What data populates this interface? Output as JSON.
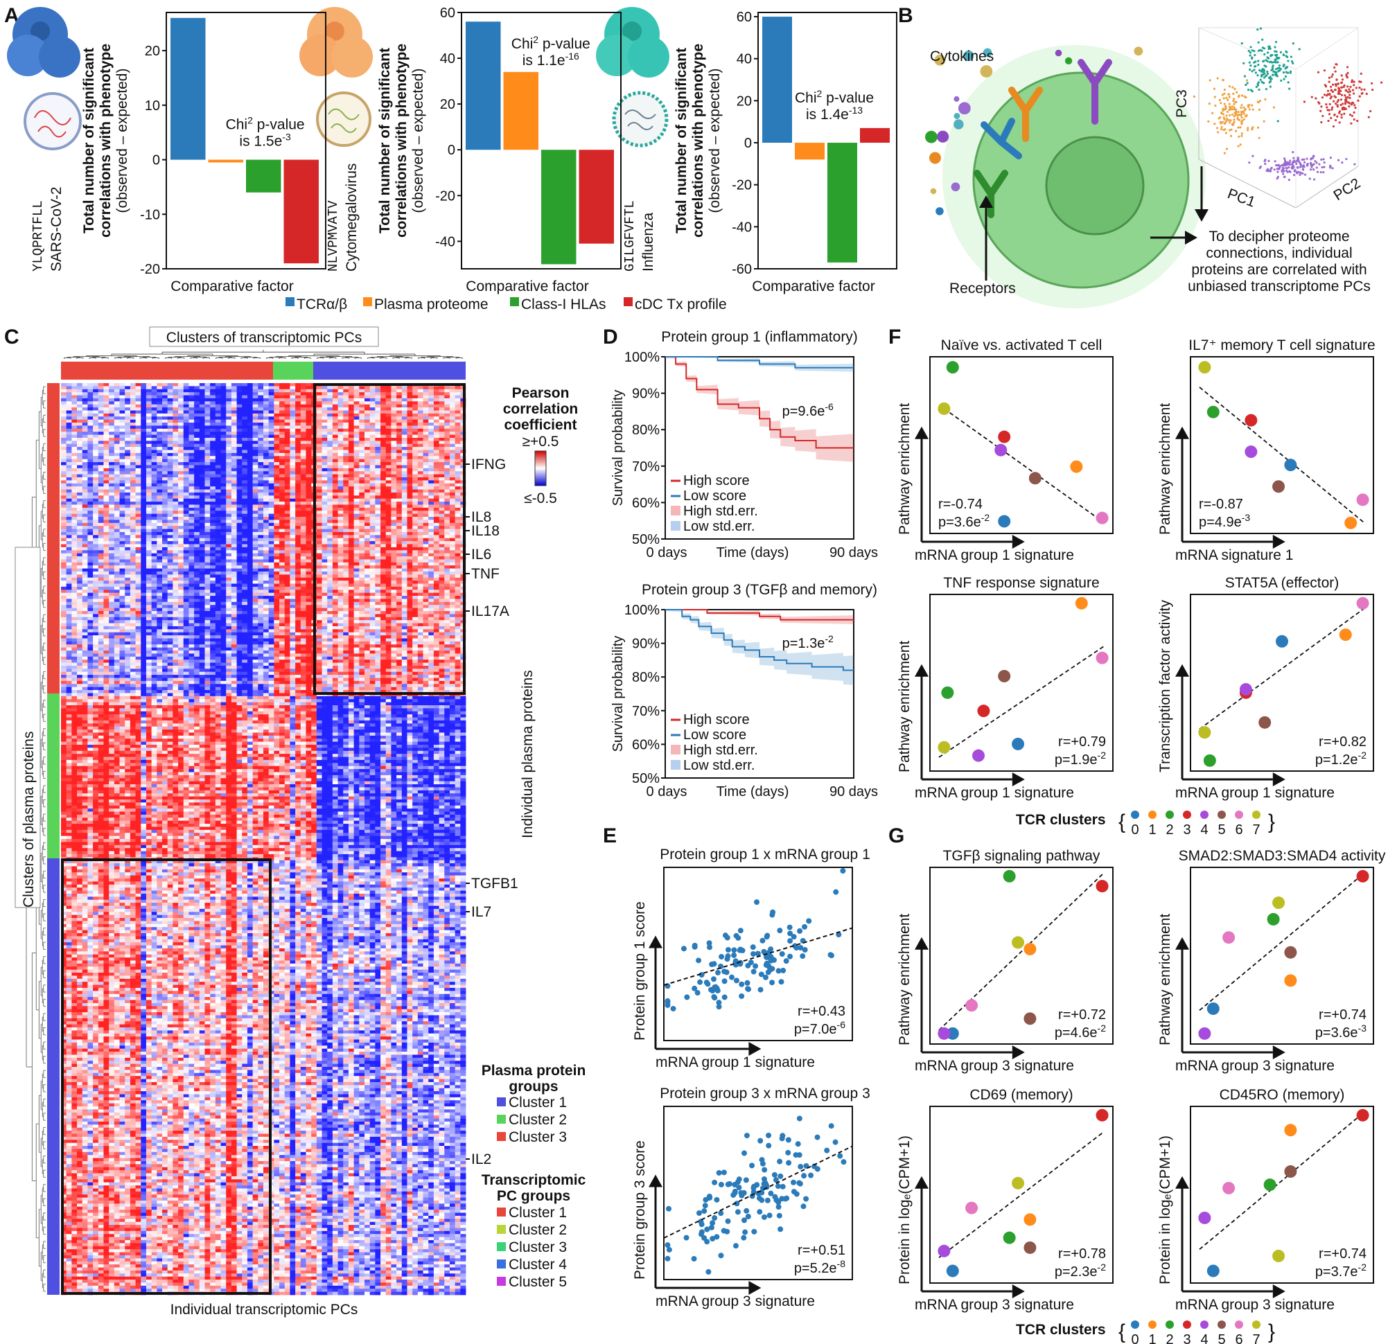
{
  "panel_labels": {
    "A": "A",
    "B": "B",
    "C": "C",
    "D": "D",
    "E": "E",
    "F": "F",
    "G": "G"
  },
  "colors": {
    "blue": "#2b7bba",
    "orange": "#ff8c1a",
    "green": "#2ca02c",
    "red": "#d62728",
    "hm_red": "#e8463a",
    "hm_green": "#5ad35a",
    "hm_blue": "#5050e0"
  },
  "panelA": {
    "ylabel_line1": "Total number of significant",
    "ylabel_line2": "correlations with phenotype",
    "ylabel_line3": "(observed – expected)",
    "xlabel": "Comparative factor",
    "pvalue_prefix": "Chi",
    "pvalue_sup": "2",
    "pvalue_word": "p-value",
    "legend": [
      "TCRα/β",
      "Plasma proteome",
      "Class-I HLAs",
      "cDC Tx profile"
    ]
  },
  "panelB": {
    "cytokines": "Cytokines",
    "receptors": "Receptors",
    "pc_axes": [
      "PC1",
      "PC2",
      "PC3"
    ],
    "note": [
      "To decipher proteome",
      "connections, individual",
      "proteins are correlated with",
      "unbiased transcriptome PCs"
    ]
  },
  "panelC": {
    "top_title": "Clusters of transcriptomic PCs",
    "left_title": "Clusters of plasma proteins",
    "bottom_title": "Individual transcriptomic PCs",
    "right_title": "Individual plasma proteins",
    "scale_title": [
      "Pearson",
      "correlation",
      "coefficient"
    ],
    "scale_max": "≥+0.5",
    "scale_min": "≤-0.5",
    "genes": [
      "IFNG",
      "IL8",
      "IL18",
      "IL6",
      "TNF",
      "IL17A",
      "TGFB1",
      "IL7",
      "IL2"
    ],
    "legend_protein_title": [
      "Plasma protein",
      "groups"
    ],
    "legend_protein": [
      "Cluster 1",
      "Cluster 2",
      "Cluster 3"
    ],
    "legend_protein_colors": [
      "#5050e0",
      "#5ad35a",
      "#e8463a"
    ],
    "legend_pc_title": [
      "Transcriptomic",
      "PC groups"
    ],
    "legend_pc": [
      "Cluster 1",
      "Cluster 2",
      "Cluster 3",
      "Cluster 4",
      "Cluster 5"
    ],
    "legend_pc_colors": [
      "#e8463a",
      "#b9d53a",
      "#3ad37a",
      "#3a6fe0",
      "#c83ae0"
    ]
  },
  "panelD": {
    "ylabel": "Survival probability",
    "xlabel": "Time (days)",
    "x_ticks": [
      "0 days",
      "90 days"
    ],
    "y_ticks": [
      "50%",
      "60%",
      "70%",
      "80%",
      "90%",
      "100%"
    ],
    "legend": [
      "High score",
      "Low score",
      "High std.err.",
      "Low std.err."
    ]
  },
  "panelE": {
    "ylabels": [
      "Protein group 1 score",
      "Protein group 3 score"
    ],
    "xlabels": [
      "mRNA group 1 signature",
      "mRNA group 3 signature"
    ]
  },
  "tcr_clusters": {
    "label": "TCR clusters",
    "ids": [
      "0",
      "1",
      "2",
      "3",
      "4",
      "5",
      "6",
      "7"
    ],
    "colors": [
      "#2b7bba",
      "#ff8c1a",
      "#2ca02c",
      "#d62728",
      "#a64bdc",
      "#8c564b",
      "#e377c2",
      "#bcbd22"
    ]
  },
  "chart_data": [
    {
      "id": "A1",
      "type": "bar",
      "virus": "SARS-CoV-2",
      "epitope": "YLQPRTFLL",
      "categories": [
        "TCRα/β",
        "Plasma proteome",
        "Class-I HLAs",
        "cDC Tx profile"
      ],
      "values": [
        26,
        -0.5,
        -6,
        -19
      ],
      "ylim": [
        -20,
        27
      ],
      "y_ticks": [
        -20,
        -10,
        0,
        10,
        20
      ],
      "pvalue": "1.5e",
      "pvalue_exp": "-3"
    },
    {
      "id": "A2",
      "type": "bar",
      "virus": "Cytomegalovirus",
      "epitope": "NLVPMVATV",
      "categories": [
        "TCRα/β",
        "Plasma proteome",
        "Class-I HLAs",
        "cDC Tx profile"
      ],
      "values": [
        56,
        34,
        -50,
        -41
      ],
      "ylim": [
        -52,
        60
      ],
      "y_ticks": [
        -40,
        -20,
        0,
        20,
        40,
        60
      ],
      "pvalue": "1.1e",
      "pvalue_exp": "-16"
    },
    {
      "id": "A3",
      "type": "bar",
      "virus": "Influenza",
      "epitope": "GILGFVFTL",
      "categories": [
        "TCRα/β",
        "Plasma proteome",
        "Class-I HLAs",
        "cDC Tx profile"
      ],
      "values": [
        60,
        -8,
        -57,
        7
      ],
      "ylim": [
        -60,
        62
      ],
      "y_ticks": [
        -60,
        -40,
        -20,
        0,
        20,
        40,
        60
      ],
      "pvalue": "1.4e",
      "pvalue_exp": "-13"
    },
    {
      "id": "D1",
      "type": "line",
      "title": "Protein group 1 (inflammatory)",
      "pvalue": "p=9.6e",
      "pvalue_exp": "-6",
      "x_range": [
        0,
        90
      ],
      "ylim": [
        50,
        100
      ],
      "series": [
        {
          "name": "High score",
          "x": [
            0,
            5,
            5,
            10,
            10,
            15,
            15,
            25,
            25,
            35,
            35,
            45,
            45,
            50,
            50,
            55,
            55,
            62,
            62,
            72,
            72,
            90
          ],
          "y": [
            100,
            100,
            98,
            98,
            94,
            94,
            91,
            91,
            87,
            87,
            86,
            86,
            83,
            83,
            80,
            80,
            78,
            78,
            77,
            77,
            75,
            75
          ],
          "err": 3.5
        },
        {
          "name": "Low score",
          "x": [
            0,
            25,
            25,
            45,
            45,
            62,
            62,
            90
          ],
          "y": [
            100,
            100,
            99,
            99,
            98,
            98,
            97,
            97
          ],
          "err": 1
        }
      ]
    },
    {
      "id": "D2",
      "type": "line",
      "title": "Protein group 3 (TGFβ and memory)",
      "pvalue": "p=1.3e",
      "pvalue_exp": "-2",
      "x_range": [
        0,
        90
      ],
      "ylim": [
        50,
        100
      ],
      "series": [
        {
          "name": "High score",
          "x": [
            0,
            20,
            20,
            45,
            45,
            55,
            55,
            90
          ],
          "y": [
            100,
            100,
            99,
            99,
            98,
            98,
            97,
            97
          ],
          "err": 1.2
        },
        {
          "name": "Low score",
          "x": [
            0,
            8,
            8,
            12,
            12,
            16,
            16,
            22,
            22,
            28,
            28,
            32,
            32,
            38,
            38,
            45,
            45,
            52,
            52,
            58,
            58,
            70,
            70,
            85,
            85,
            90
          ],
          "y": [
            100,
            100,
            98,
            98,
            97,
            97,
            95,
            95,
            93,
            93,
            91,
            91,
            89,
            89,
            88,
            88,
            86,
            86,
            85,
            85,
            84,
            84,
            83,
            83,
            82,
            82
          ],
          "err": 4
        }
      ]
    },
    {
      "id": "E1",
      "type": "scatter",
      "title": "Protein group 1 x mRNA group 1",
      "r": "r=+0.43",
      "p": "p=7.0e",
      "p_exp": "-6",
      "slope": 0.35,
      "intercept": 0.3,
      "n": 120,
      "seed": 11,
      "outlier": [
        0.95,
        0.98
      ]
    },
    {
      "id": "E2",
      "type": "scatter",
      "title": "Protein group 3 x mRNA group 3",
      "r": "r=+0.51",
      "p": "p=5.2e",
      "p_exp": "-8",
      "slope": 0.55,
      "intercept": 0.22,
      "n": 130,
      "seed": 23,
      "outlier": [
        0.72,
        0.93
      ]
    },
    {
      "id": "F1",
      "type": "scatter",
      "title": "Naïve vs. activated T cell",
      "xlabel": "mRNA group 1 signature",
      "ylabel": "Pathway enrichment",
      "r": "r=-0.74",
      "p": "p=3.6e",
      "p_exp": "-2",
      "r_pos": "bl",
      "line": [
        [
          0.05,
          0.72
        ],
        [
          0.97,
          0.04
        ]
      ],
      "points": [
        {
          "c": 0,
          "x": 0.4,
          "y": 0.04
        },
        {
          "c": 1,
          "x": 0.82,
          "y": 0.37
        },
        {
          "c": 2,
          "x": 0.1,
          "y": 0.97
        },
        {
          "c": 3,
          "x": 0.4,
          "y": 0.55
        },
        {
          "c": 4,
          "x": 0.38,
          "y": 0.47
        },
        {
          "c": 5,
          "x": 0.58,
          "y": 0.3
        },
        {
          "c": 6,
          "x": 0.97,
          "y": 0.06
        },
        {
          "c": 7,
          "x": 0.05,
          "y": 0.72
        }
      ]
    },
    {
      "id": "F2",
      "type": "scatter",
      "title": "IL7⁺ memory T cell signature",
      "xlabel": "mRNA signature 1",
      "ylabel": "Pathway enrichment",
      "r": "r=-0.87",
      "p": "p=4.9e",
      "p_exp": "-3",
      "r_pos": "bl",
      "line": [
        [
          0.02,
          0.85
        ],
        [
          0.98,
          0.03
        ]
      ],
      "points": [
        {
          "c": 0,
          "x": 0.55,
          "y": 0.38
        },
        {
          "c": 1,
          "x": 0.9,
          "y": 0.03
        },
        {
          "c": 2,
          "x": 0.1,
          "y": 0.7
        },
        {
          "c": 3,
          "x": 0.32,
          "y": 0.65
        },
        {
          "c": 4,
          "x": 0.32,
          "y": 0.46
        },
        {
          "c": 5,
          "x": 0.48,
          "y": 0.25
        },
        {
          "c": 6,
          "x": 0.97,
          "y": 0.17
        },
        {
          "c": 7,
          "x": 0.05,
          "y": 0.97
        }
      ]
    },
    {
      "id": "F3",
      "type": "scatter",
      "title": "TNF response signature",
      "xlabel": "mRNA group 1 signature",
      "ylabel": "Pathway enrichment",
      "r": "r=+0.79",
      "p": "p=1.9e",
      "p_exp": "-2",
      "r_pos": "br",
      "line": [
        [
          0.02,
          0.05
        ],
        [
          0.98,
          0.72
        ]
      ],
      "points": [
        {
          "c": 0,
          "x": 0.48,
          "y": 0.13
        },
        {
          "c": 1,
          "x": 0.85,
          "y": 0.98
        },
        {
          "c": 2,
          "x": 0.07,
          "y": 0.44
        },
        {
          "c": 3,
          "x": 0.28,
          "y": 0.33
        },
        {
          "c": 4,
          "x": 0.25,
          "y": 0.06
        },
        {
          "c": 5,
          "x": 0.4,
          "y": 0.54
        },
        {
          "c": 6,
          "x": 0.97,
          "y": 0.65
        },
        {
          "c": 7,
          "x": 0.05,
          "y": 0.11
        }
      ]
    },
    {
      "id": "F4",
      "type": "scatter",
      "title": "STAT5A (effector)",
      "xlabel": "mRNA group 1 signature",
      "ylabel": "Transcription factor activity",
      "r": "r=+0.82",
      "p": "p=1.2e",
      "p_exp": "-2",
      "r_pos": "br",
      "line": [
        [
          0.02,
          0.22
        ],
        [
          0.98,
          0.95
        ]
      ],
      "points": [
        {
          "c": 0,
          "x": 0.5,
          "y": 0.75
        },
        {
          "c": 1,
          "x": 0.87,
          "y": 0.79
        },
        {
          "c": 2,
          "x": 0.08,
          "y": 0.03
        },
        {
          "c": 3,
          "x": 0.29,
          "y": 0.44
        },
        {
          "c": 4,
          "x": 0.29,
          "y": 0.46
        },
        {
          "c": 5,
          "x": 0.4,
          "y": 0.26
        },
        {
          "c": 6,
          "x": 0.97,
          "y": 0.98
        },
        {
          "c": 7,
          "x": 0.05,
          "y": 0.2
        }
      ]
    },
    {
      "id": "G1",
      "type": "scatter",
      "title": "TGFβ signaling pathway",
      "xlabel": "mRNA group 3 signature",
      "ylabel": "Pathway enrichment",
      "r": "r=+0.72",
      "p": "p=4.6e",
      "p_exp": "-2",
      "r_pos": "br",
      "line": [
        [
          0.02,
          0.05
        ],
        [
          0.98,
          1.0
        ]
      ],
      "points": [
        {
          "c": 0,
          "x": 0.1,
          "y": 0.03
        },
        {
          "c": 1,
          "x": 0.55,
          "y": 0.54
        },
        {
          "c": 2,
          "x": 0.43,
          "y": 0.98
        },
        {
          "c": 3,
          "x": 0.97,
          "y": 0.92
        },
        {
          "c": 4,
          "x": 0.05,
          "y": 0.03
        },
        {
          "c": 5,
          "x": 0.55,
          "y": 0.12
        },
        {
          "c": 6,
          "x": 0.21,
          "y": 0.2
        },
        {
          "c": 7,
          "x": 0.48,
          "y": 0.58
        }
      ]
    },
    {
      "id": "G2",
      "type": "scatter",
      "title": "SMAD2:SMAD3:SMAD4 activity",
      "xlabel": "mRNA group 3 signature",
      "ylabel": "Pathway enrichment",
      "r": "r=+0.74",
      "p": "p=3.6e",
      "p_exp": "-3",
      "r_pos": "br",
      "line": [
        [
          0.02,
          0.17
        ],
        [
          0.98,
          1.0
        ]
      ],
      "points": [
        {
          "c": 0,
          "x": 0.1,
          "y": 0.18
        },
        {
          "c": 1,
          "x": 0.55,
          "y": 0.35
        },
        {
          "c": 2,
          "x": 0.45,
          "y": 0.72
        },
        {
          "c": 3,
          "x": 0.97,
          "y": 0.98
        },
        {
          "c": 4,
          "x": 0.05,
          "y": 0.03
        },
        {
          "c": 5,
          "x": 0.55,
          "y": 0.52
        },
        {
          "c": 6,
          "x": 0.19,
          "y": 0.61
        },
        {
          "c": 7,
          "x": 0.48,
          "y": 0.82
        }
      ]
    },
    {
      "id": "G3",
      "type": "scatter",
      "title": "CD69 (memory)",
      "xlabel": "mRNA group 3 signature",
      "ylabel": "Protein in logₑ(CPM+1)",
      "r": "r=+0.78",
      "p": "p=2.3e",
      "p_exp": "-2",
      "r_pos": "br",
      "line": [
        [
          0.02,
          0.12
        ],
        [
          0.98,
          0.88
        ]
      ],
      "points": [
        {
          "c": 0,
          "x": 0.1,
          "y": 0.04
        },
        {
          "c": 1,
          "x": 0.55,
          "y": 0.35
        },
        {
          "c": 2,
          "x": 0.43,
          "y": 0.24
        },
        {
          "c": 3,
          "x": 0.97,
          "y": 0.98
        },
        {
          "c": 4,
          "x": 0.05,
          "y": 0.16
        },
        {
          "c": 5,
          "x": 0.55,
          "y": 0.18
        },
        {
          "c": 6,
          "x": 0.21,
          "y": 0.42
        },
        {
          "c": 7,
          "x": 0.48,
          "y": 0.57
        }
      ]
    },
    {
      "id": "G4",
      "type": "scatter",
      "title": "CD45RO (memory)",
      "xlabel": "mRNA group 3 signature",
      "ylabel": "Protein in logₑ(CPM+1)",
      "r": "r=+0.74",
      "p": "p=3.7e",
      "p_exp": "-2",
      "r_pos": "br",
      "line": [
        [
          0.02,
          0.17
        ],
        [
          0.98,
          1.0
        ]
      ],
      "points": [
        {
          "c": 0,
          "x": 0.1,
          "y": 0.04
        },
        {
          "c": 1,
          "x": 0.55,
          "y": 0.89
        },
        {
          "c": 2,
          "x": 0.43,
          "y": 0.56
        },
        {
          "c": 3,
          "x": 0.97,
          "y": 0.98
        },
        {
          "c": 4,
          "x": 0.05,
          "y": 0.36
        },
        {
          "c": 5,
          "x": 0.55,
          "y": 0.64
        },
        {
          "c": 6,
          "x": 0.19,
          "y": 0.54
        },
        {
          "c": 7,
          "x": 0.48,
          "y": 0.13
        }
      ]
    }
  ]
}
